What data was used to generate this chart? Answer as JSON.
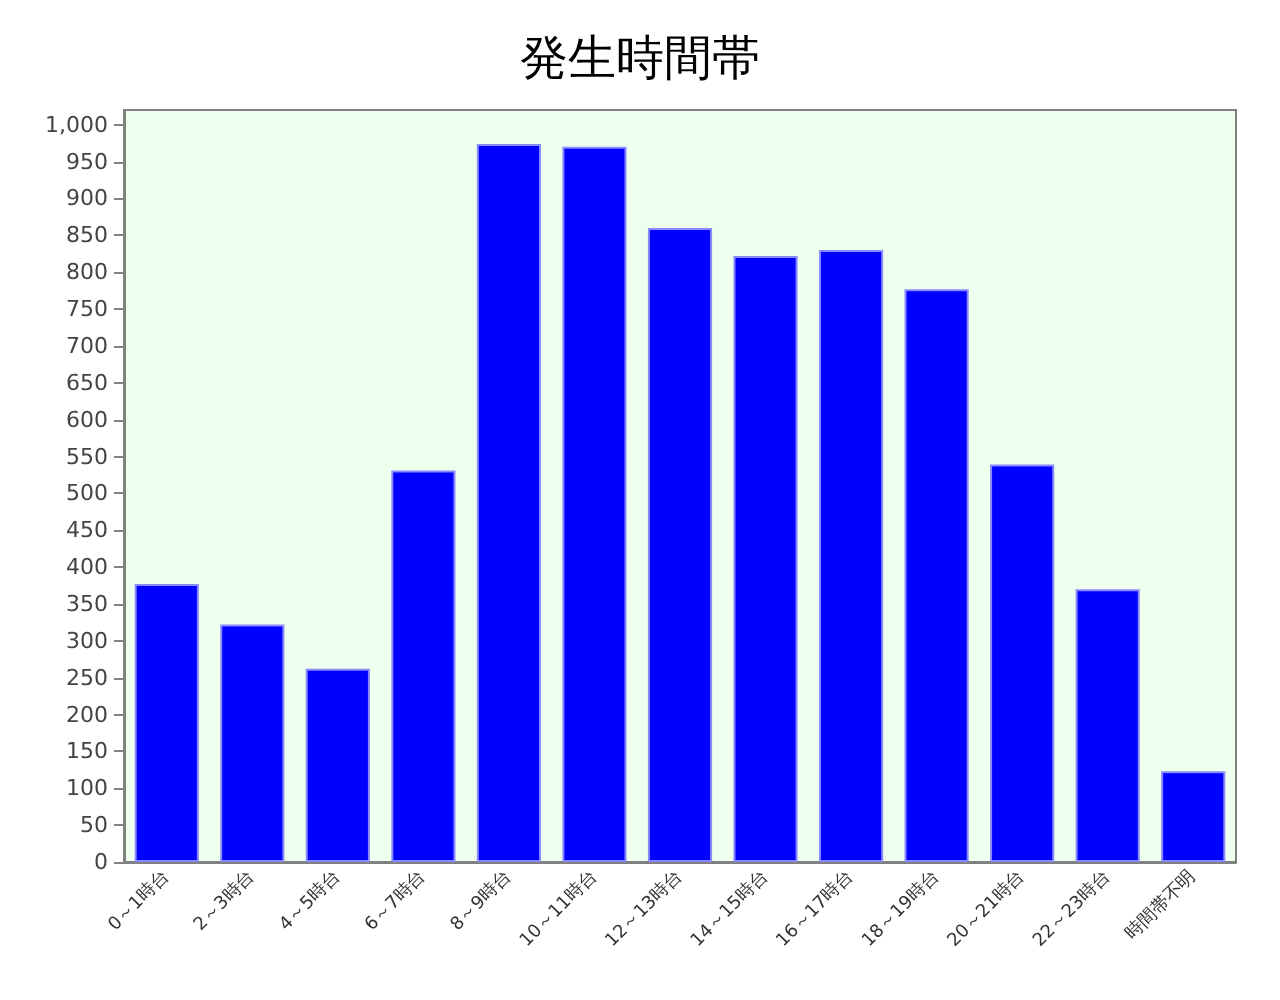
{
  "chart_data": {
    "type": "bar",
    "title": "発生時間帯",
    "categories": [
      "0～1時台",
      "2～3時台",
      "4～5時台",
      "6～7時台",
      "8～9時台",
      "10～11時台",
      "12～13時台",
      "14～15時台",
      "16～17時台",
      "18～19時台",
      "20～21時台",
      "22～23時台",
      "時間帯不明"
    ],
    "values": [
      377,
      322,
      262,
      531,
      974,
      970,
      860,
      822,
      830,
      777,
      539,
      370,
      123
    ],
    "color": "#0000ff",
    "ylim": [
      0,
      1020
    ],
    "yticks": [
      0,
      50,
      100,
      150,
      200,
      250,
      300,
      350,
      400,
      450,
      500,
      550,
      600,
      650,
      700,
      750,
      800,
      850,
      900,
      950,
      {
        "value": 1000,
        "label": "1,000"
      }
    ],
    "grid": false
  }
}
